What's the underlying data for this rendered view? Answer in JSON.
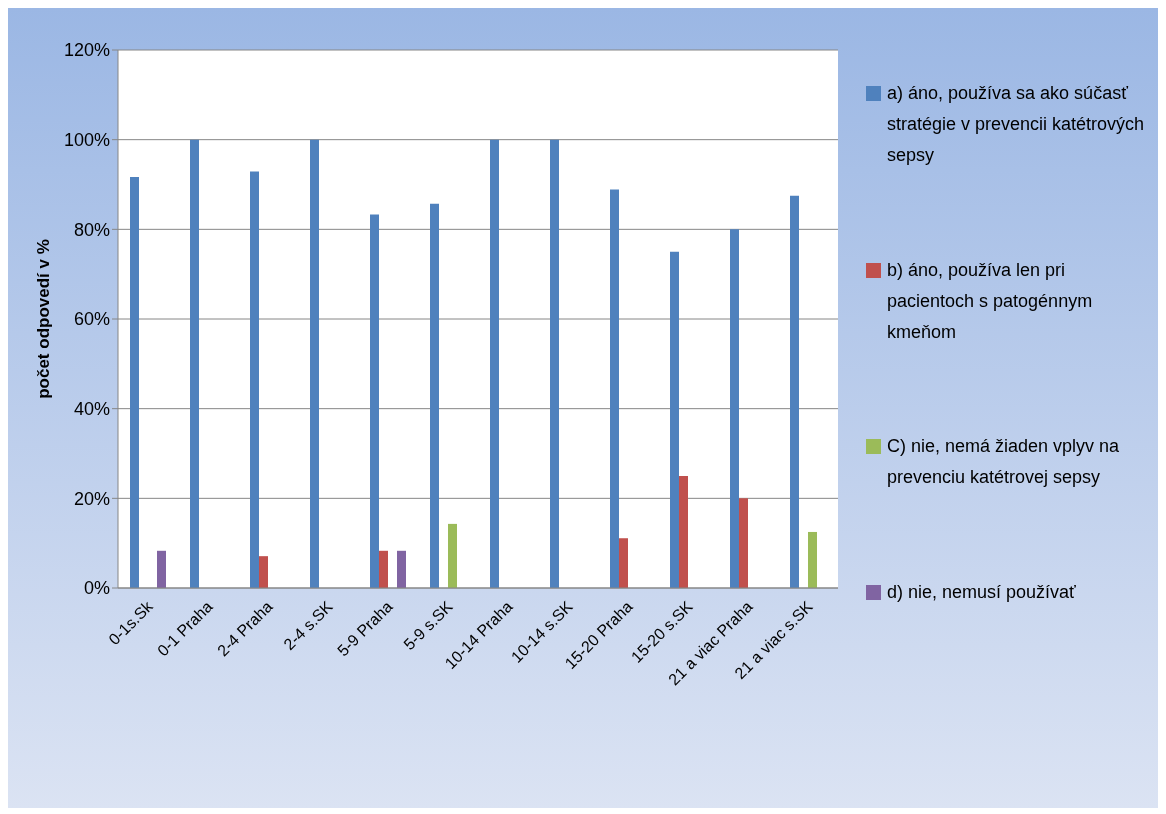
{
  "chart_data": {
    "type": "bar",
    "ylabel": "počet odpovedí v %",
    "categories": [
      "0-1s.Sk",
      "0-1 Praha",
      "2-4 Praha",
      "2-4 s.SK",
      "5-9 Praha",
      "5-9 s.SK",
      "10-14 Praha",
      "10-14 s.SK",
      "15-20 Praha",
      "15-20 s.SK",
      "21 a viac Praha",
      "21 a viac s.SK"
    ],
    "series": [
      {
        "name": "a) áno, používa sa ako súčasť stratégie v prevencii katétrových sepsy",
        "color": "#4f81bd",
        "values": [
          91.7,
          100,
          92.9,
          100,
          83.3,
          85.7,
          100,
          100,
          88.9,
          75,
          80,
          87.5
        ]
      },
      {
        "name": "b) áno, používa len pri pacientoch s patogénnym kmeňom",
        "color": "#c0504d",
        "values": [
          null,
          null,
          7.1,
          null,
          8.3,
          null,
          null,
          null,
          11.1,
          25,
          20,
          null
        ]
      },
      {
        "name": "C) nie, nemá žiaden vplyv na prevenciu katétrovej sepsy",
        "color": "#9bbb59",
        "values": [
          null,
          null,
          null,
          null,
          null,
          14.3,
          null,
          null,
          null,
          null,
          null,
          12.5
        ]
      },
      {
        "name": "d) nie, nemusí používať",
        "color": "#8064a2",
        "values": [
          8.3,
          null,
          null,
          null,
          8.3,
          null,
          null,
          null,
          null,
          null,
          null,
          null
        ]
      }
    ],
    "ylim": [
      0,
      120
    ],
    "yticks": [
      {
        "value": 0,
        "label": "0%"
      },
      {
        "value": 20,
        "label": "20%"
      },
      {
        "value": 40,
        "label": "40%"
      },
      {
        "value": 60,
        "label": "60%"
      },
      {
        "value": 80,
        "label": "80%"
      },
      {
        "value": 100,
        "label": "100%"
      },
      {
        "value": 120,
        "label": "120%"
      }
    ],
    "grid": "y",
    "legend": "right"
  }
}
